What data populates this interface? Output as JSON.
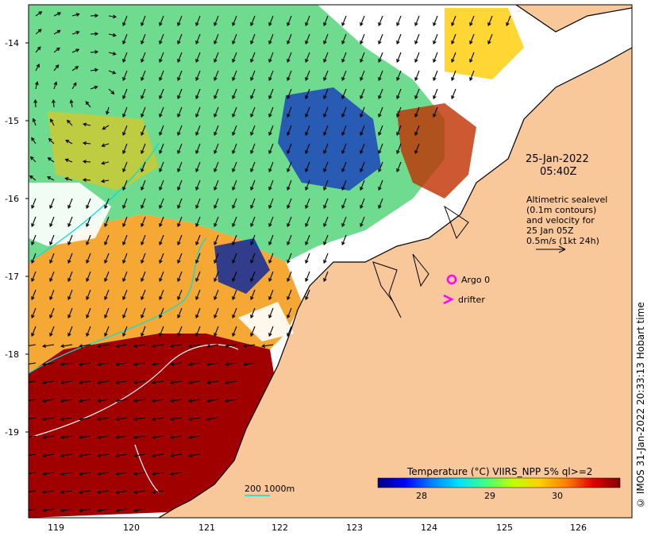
{
  "map": {
    "date_line1": "25-Jan-2022",
    "date_line2": "05:40Z",
    "info_lines": [
      "Altimetric sealevel",
      "(0.1m contours)",
      "and velocity for",
      "25 Jan 05Z",
      "0.5m/s (1kt 24h)"
    ],
    "lat_ticks": [
      "-14",
      "-15",
      "-16",
      "-17",
      "-18",
      "-19"
    ],
    "lon_ticks": [
      "119",
      "120",
      "121",
      "122",
      "123",
      "124",
      "125",
      "126"
    ],
    "legend_argo": "Argo 0",
    "legend_drifter": "drifter",
    "scale_label": "200  1000m",
    "colorbar_title": "Temperature (°C) VIIRS_NPP 5% ql>=2",
    "colorbar_ticks": [
      "28",
      "29",
      "30"
    ],
    "credit": "© IMOS 31-Jan-2022 20:33:13 Hobart time"
  },
  "colors": {
    "land": "#f8c79a",
    "hot": "#a00000",
    "argo": "#ff00ff",
    "contour": "#00e0e0"
  },
  "colorbar_stops": [
    "#00007f",
    "#0000ff",
    "#0080ff",
    "#00e0ff",
    "#40ff80",
    "#c0ff00",
    "#ffd000",
    "#ff8000",
    "#e00000",
    "#800000"
  ]
}
